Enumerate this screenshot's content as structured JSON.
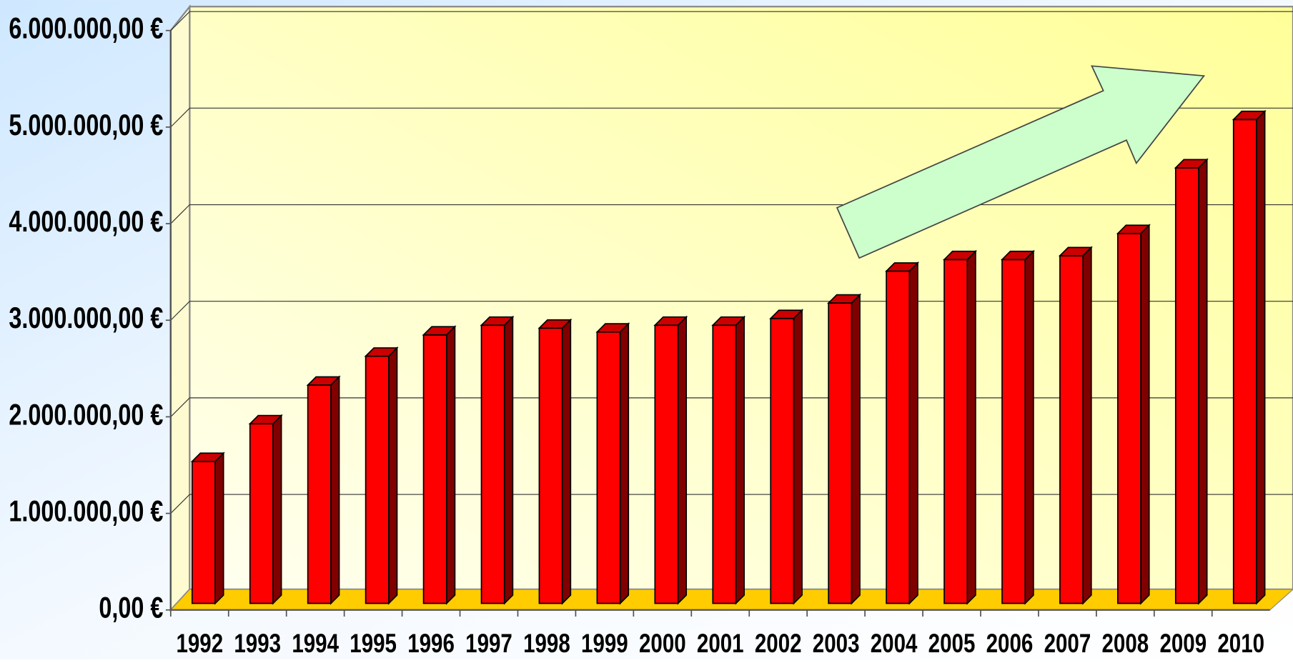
{
  "chart_data": {
    "type": "bar3d",
    "categories": [
      "1992",
      "1993",
      "1994",
      "1995",
      "1996",
      "1997",
      "1998",
      "1999",
      "2000",
      "2001",
      "2002",
      "2003",
      "2004",
      "2005",
      "2006",
      "2007",
      "2008",
      "2009",
      "2010"
    ],
    "values": [
      1470000,
      1860000,
      2260000,
      2560000,
      2780000,
      2880000,
      2850000,
      2810000,
      2880000,
      2880000,
      2950000,
      3110000,
      3440000,
      3560000,
      3560000,
      3600000,
      3830000,
      4510000,
      5010000
    ],
    "color": "#ff0000",
    "ylim": [
      0,
      6000000
    ],
    "yticks": [
      {
        "value": 0,
        "label": "0,00 €"
      },
      {
        "value": 1000000,
        "label": "1.000.000,00 €"
      },
      {
        "value": 2000000,
        "label": "2.000.000,00 €"
      },
      {
        "value": 3000000,
        "label": "3.000.000,00 €"
      },
      {
        "value": 4000000,
        "label": "4.000.000,00 €"
      },
      {
        "value": 5000000,
        "label": "5.000.000,00 €"
      },
      {
        "value": 6000000,
        "label": "6.000.000,00 €"
      }
    ],
    "grid": true
  }
}
